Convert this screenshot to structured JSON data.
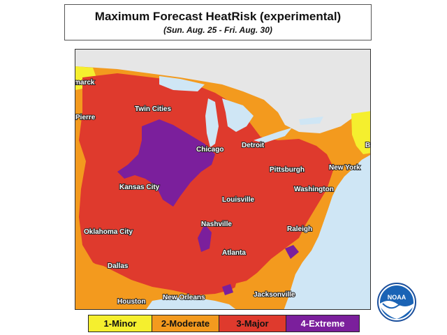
{
  "title": "Maximum Forecast HeatRisk (experimental)",
  "subtitle": "(Sun. Aug. 25 - Fri. Aug. 30)",
  "cities": [
    "marck",
    "Pierre",
    "Twin Cities",
    "Chicago",
    "Detroit",
    "Pittsburgh",
    "New York",
    "Kansas City",
    "Washington",
    "Louisville",
    "Nashville",
    "Oklahoma City",
    "Raleigh",
    "Atlanta",
    "Dallas",
    "Jacksonville",
    "Houston",
    "New Orleans",
    "B"
  ],
  "legend": [
    {
      "label": "1-Minor",
      "color": "#f5ef2e"
    },
    {
      "label": "2-Moderate",
      "color": "#f39a1e"
    },
    {
      "label": "3-Major",
      "color": "#df3a2d"
    },
    {
      "label": "4-Extreme",
      "color": "#7b1f9c"
    }
  ],
  "colors": {
    "water": "#cfe6f5",
    "canada": "#e6e6e6",
    "minor": "#f5ef2e",
    "moderate": "#f39a1e",
    "major": "#df3a2d",
    "extreme": "#7b1f9c"
  },
  "logo": {
    "text": "NOAA",
    "icon": "noaa-logo-icon"
  }
}
